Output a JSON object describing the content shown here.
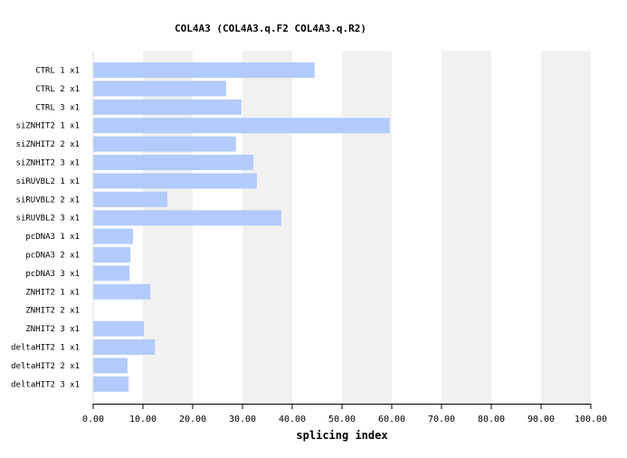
{
  "chart_data": {
    "type": "bar",
    "orientation": "horizontal",
    "title": "COL4A3 (COL4A3.q.F2  COL4A3.q.R2)",
    "xlabel": "splicing index",
    "ylabel": "",
    "xlim": [
      0,
      100
    ],
    "xticks": [
      "0.00",
      "10.00",
      "20.00",
      "30.00",
      "40.00",
      "50.00",
      "60.00",
      "70.00",
      "80.00",
      "90.00",
      "100.00"
    ],
    "categories": [
      "CTRL 1 x1",
      "CTRL 2 x1",
      "CTRL 3 x1",
      "siZNHIT2 1 x1",
      "siZNHIT2 2 x1",
      "siZNHIT2 3 x1",
      "siRUVBL2 1 x1",
      "siRUVBL2 2 x1",
      "siRUVBL2 3 x1",
      "pcDNA3 1 x1",
      "pcDNA3 2 x1",
      "pcDNA3 3 x1",
      "ZNHIT2 1 x1",
      "ZNHIT2 2 x1",
      "ZNHIT2 3 x1",
      "deltaHIT2 1 x1",
      "deltaHIT2 2 x1",
      "deltaHIT2 3 x1"
    ],
    "values": [
      44.5,
      26.7,
      29.8,
      59.6,
      28.7,
      32.2,
      32.9,
      14.9,
      37.8,
      8.0,
      7.5,
      7.3,
      11.5,
      0,
      10.2,
      12.4,
      6.9,
      7.1
    ],
    "bar_color": "#b3cbfc",
    "band_color": "#f1f1f1",
    "grid": "alternating vertical bands"
  }
}
